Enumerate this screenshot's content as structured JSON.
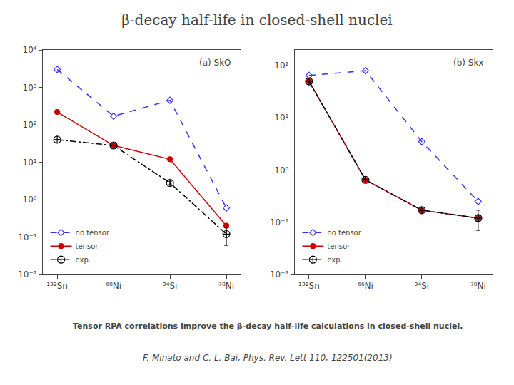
{
  "title": "β-decay half-life in closed-shell nuclei",
  "subtitle": "Tensor RPA correlations improve the β-decay half-life calculations in closed-shell nuclei.",
  "annotations": [
    "F. Minato and C. L. Bai, Phys. Rev. Lett 110, 122501(2013)"
  ],
  "chart_data": [
    {
      "type": "line",
      "categories": [
        "¹³²Sn",
        "⁶⁸Ni",
        "³⁴Si",
        "⁷⁸Ni"
      ],
      "annotations": [
        "(a) SkO"
      ],
      "log": "y",
      "ylim": [
        0.01,
        10000
      ],
      "yticks": [
        {
          "value": 0.01,
          "label": "10⁻²"
        },
        {
          "value": 0.1,
          "label": "10⁻¹"
        },
        {
          "value": 1,
          "label": "10⁰"
        },
        {
          "value": 10,
          "label": "10¹"
        },
        {
          "value": 100,
          "label": "10²"
        },
        {
          "value": 1000,
          "label": "10³"
        },
        {
          "value": 10000,
          "label": "10⁴"
        }
      ],
      "grid": false,
      "legend": "lower left",
      "series": [
        {
          "name": "no tensor",
          "color": "#3333ff",
          "marker": "diamond-open",
          "line_style": "dash",
          "values": [
            3000,
            170,
            450,
            0.6
          ]
        },
        {
          "name": "tensor",
          "color": "#cc0000",
          "marker": "circle",
          "line_style": "solid",
          "values": [
            220,
            28,
            12,
            0.2
          ]
        },
        {
          "name": "exp.",
          "color": "#000000",
          "marker": "circle-cross-open",
          "line_style": "dashdot",
          "values": [
            40,
            28,
            2.8,
            0.12
          ],
          "errors_low": [
            0,
            0,
            0.3,
            0.06
          ],
          "errors_high": [
            0,
            0,
            0.3,
            0.06
          ]
        }
      ]
    },
    {
      "type": "line",
      "categories": [
        "¹³²Sn",
        "⁶⁶Ni",
        "³⁴Si",
        "⁷⁸Ni"
      ],
      "annotations": [
        "(b) Skx"
      ],
      "log": "y",
      "ylim": [
        0.01,
        200
      ],
      "yticks": [
        {
          "value": 0.01,
          "label": "10⁻²"
        },
        {
          "value": 0.1,
          "label": "10⁻¹"
        },
        {
          "value": 1,
          "label": "10⁰"
        },
        {
          "value": 10,
          "label": "10¹"
        },
        {
          "value": 100,
          "label": "10²"
        }
      ],
      "grid": false,
      "legend": "lower left",
      "series": [
        {
          "name": "no tensor",
          "color": "#3333ff",
          "marker": "diamond-open",
          "line_style": "dash",
          "values": [
            65,
            80,
            3.5,
            0.25
          ]
        },
        {
          "name": "tensor",
          "color": "#cc0000",
          "marker": "circle",
          "line_style": "solid",
          "values": [
            50,
            0.65,
            0.17,
            0.12
          ]
        },
        {
          "name": "exp.",
          "color": "#000000",
          "marker": "circle-cross-open",
          "line_style": "dashdot",
          "values": [
            50,
            0.65,
            0.17,
            0.12
          ],
          "errors_low": [
            0,
            0,
            0,
            0.05
          ],
          "errors_high": [
            0,
            0,
            0,
            0.05
          ]
        }
      ]
    }
  ]
}
